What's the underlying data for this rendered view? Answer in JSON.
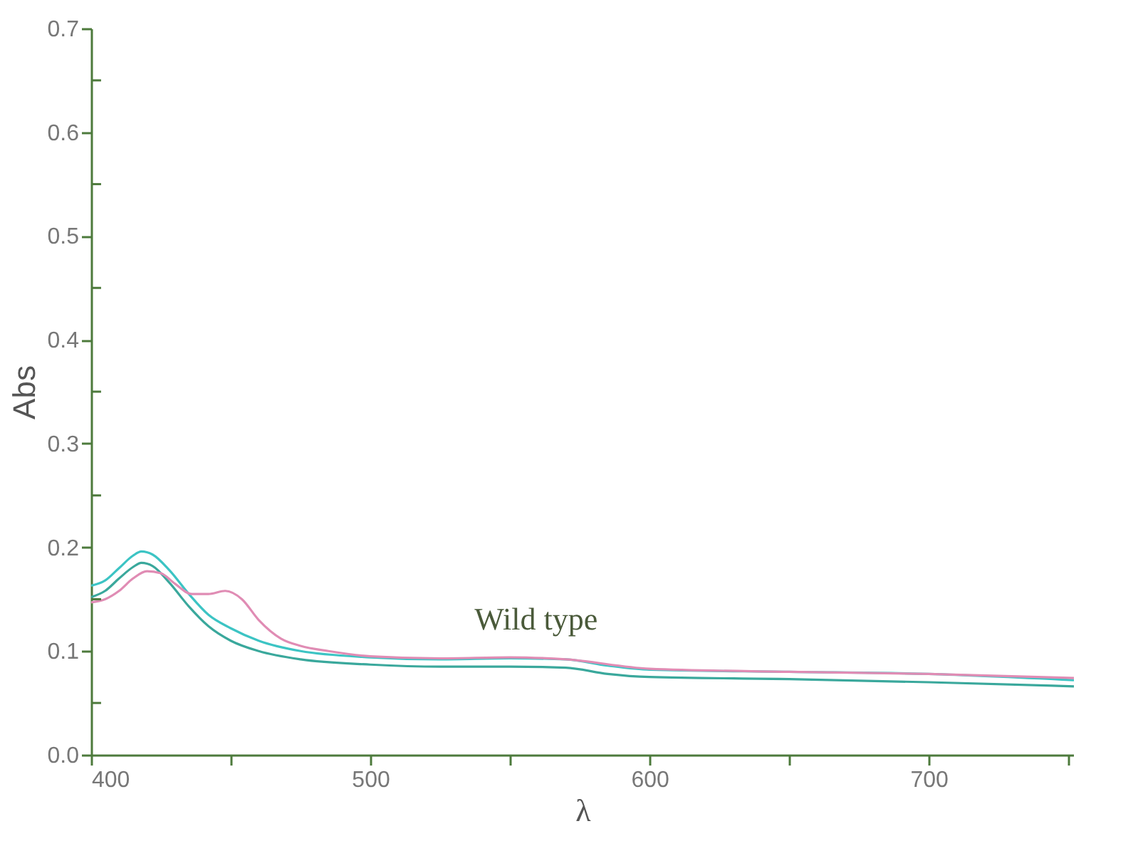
{
  "chart_data": {
    "type": "line",
    "xlabel": "λ",
    "ylabel": "Abs",
    "xlim": [
      400,
      752
    ],
    "ylim": [
      0,
      0.7
    ],
    "xticks": [
      400,
      {
        "value": 450,
        "label": null
      },
      500,
      {
        "value": 550,
        "label": null
      },
      600,
      {
        "value": 650,
        "label": null
      },
      700,
      {
        "value": 750,
        "label": null
      }
    ],
    "yticks": [
      {
        "value": 0,
        "label": "0.0"
      },
      {
        "value": 0.05,
        "label": null
      },
      0.1,
      {
        "value": 0.15,
        "label": null
      },
      0.2,
      {
        "value": 0.25,
        "label": null
      },
      0.3,
      {
        "value": 0.35,
        "label": null
      },
      0.4,
      {
        "value": 0.45,
        "label": null
      },
      0.5,
      {
        "value": 0.55,
        "label": null
      },
      0.6,
      {
        "value": 0.65,
        "label": null
      },
      0.7
    ],
    "grid": false,
    "legend": false,
    "marker": "none",
    "line_style": "solid",
    "annotations": [
      "Wild type"
    ],
    "series": [
      {
        "color": "#3cc4c4",
        "x": [
          400,
          405,
          410,
          415,
          418,
          422,
          428,
          435,
          442,
          450,
          460,
          475,
          500,
          525,
          550,
          570,
          585,
          600,
          650,
          700,
          752
        ],
        "values": [
          0.163,
          0.168,
          0.18,
          0.192,
          0.196,
          0.193,
          0.178,
          0.155,
          0.135,
          0.122,
          0.11,
          0.1,
          0.094,
          0.092,
          0.093,
          0.092,
          0.086,
          0.082,
          0.08,
          0.078,
          0.072
        ]
      },
      {
        "color": "#3aa89c",
        "x": [
          400,
          405,
          410,
          415,
          418,
          422,
          428,
          435,
          442,
          450,
          460,
          475,
          500,
          525,
          550,
          570,
          585,
          600,
          650,
          700,
          752
        ],
        "values": [
          0.152,
          0.158,
          0.17,
          0.181,
          0.185,
          0.182,
          0.166,
          0.143,
          0.124,
          0.11,
          0.1,
          0.092,
          0.087,
          0.085,
          0.085,
          0.084,
          0.078,
          0.075,
          0.073,
          0.07,
          0.066
        ]
      },
      {
        "color": "#e08cb4",
        "x": [
          400,
          405,
          410,
          415,
          420,
          425,
          430,
          436,
          442,
          448,
          454,
          460,
          468,
          475,
          485,
          500,
          525,
          550,
          570,
          600,
          650,
          700,
          752
        ],
        "values": [
          0.147,
          0.15,
          0.158,
          0.17,
          0.177,
          0.175,
          0.165,
          0.155,
          0.155,
          0.158,
          0.15,
          0.13,
          0.112,
          0.105,
          0.1,
          0.095,
          0.093,
          0.094,
          0.092,
          0.083,
          0.08,
          0.078,
          0.074
        ]
      }
    ]
  }
}
